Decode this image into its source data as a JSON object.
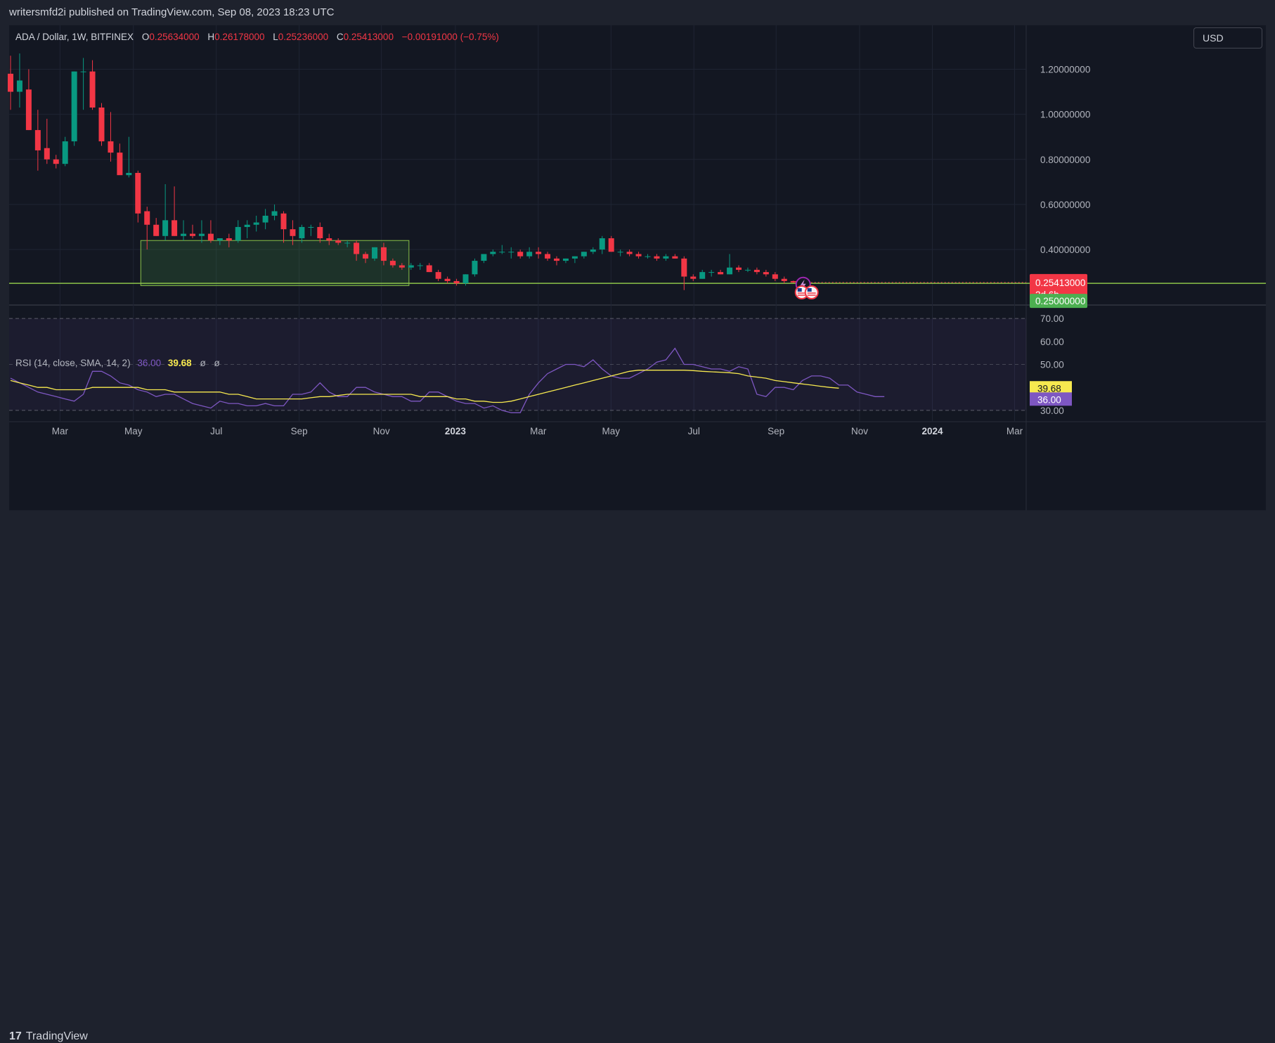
{
  "header": {
    "publisher_line": "writersmfd2i published on TradingView.com, Sep 08, 2023 18:23 UTC"
  },
  "legend": {
    "symbol": "ADA / Dollar, 1W, BITFINEX",
    "o_key": "O",
    "o_val": "0.25634000",
    "h_key": "H",
    "h_val": "0.26178000",
    "l_key": "L",
    "l_val": "0.25236000",
    "c_key": "C",
    "c_val": "0.25413000",
    "change": "−0.00191000 (−0.75%)"
  },
  "currency_button": "USD",
  "rsi_legend": {
    "label": "RSI (14, close, SMA, 14, 2)",
    "rsi_val": "36.00",
    "sma_val": "39.68",
    "phi1": "ø",
    "phi2": "ø"
  },
  "footer": {
    "brand": "TradingView",
    "brand_mark": "17"
  },
  "colors": {
    "up": "#089981",
    "down": "#f23645",
    "background": "#131722",
    "support": "#8bc34a",
    "rsi": "#7e57c2",
    "rsi_sma": "#f7e94f"
  },
  "chart_data": [
    {
      "type": "candlestick",
      "symbol": "ADA / Dollar",
      "interval": "1W",
      "exchange": "BITFINEX",
      "x_tick_labels": [
        "Mar",
        "May",
        "Jul",
        "Sep",
        "Nov",
        "2023",
        "Mar",
        "May",
        "Jul",
        "Sep",
        "Nov",
        "2024",
        "Mar"
      ],
      "y_tick_labels": [
        "1.20000000",
        "1.00000000",
        "0.80000000",
        "0.60000000",
        "0.40000000"
      ],
      "ylim": [
        0.16,
        1.32
      ],
      "price_labels": {
        "last": "0.25413000",
        "countdown": "2d 6h",
        "level": "0.25000000"
      },
      "support_level": 0.25,
      "range_box": {
        "start_index": 14,
        "end_index": 43,
        "top": 0.44,
        "bottom": 0.24
      },
      "candles_ohlc": [
        [
          1.18,
          1.26,
          1.02,
          1.1
        ],
        [
          1.1,
          1.27,
          1.03,
          1.15
        ],
        [
          1.11,
          1.2,
          0.93,
          0.93
        ],
        [
          0.93,
          1.02,
          0.75,
          0.84
        ],
        [
          0.85,
          0.98,
          0.78,
          0.8
        ],
        [
          0.8,
          0.82,
          0.76,
          0.78
        ],
        [
          0.78,
          0.9,
          0.77,
          0.88
        ],
        [
          0.88,
          1.19,
          0.86,
          1.19
        ],
        [
          1.19,
          1.25,
          1.02,
          1.19
        ],
        [
          1.19,
          1.24,
          1.02,
          1.03
        ],
        [
          1.03,
          1.05,
          0.86,
          0.88
        ],
        [
          0.88,
          1.01,
          0.79,
          0.83
        ],
        [
          0.83,
          0.87,
          0.74,
          0.73
        ],
        [
          0.73,
          0.9,
          0.72,
          0.74
        ],
        [
          0.74,
          0.75,
          0.52,
          0.56
        ],
        [
          0.57,
          0.59,
          0.4,
          0.51
        ],
        [
          0.51,
          0.54,
          0.46,
          0.46
        ],
        [
          0.46,
          0.69,
          0.44,
          0.53
        ],
        [
          0.53,
          0.68,
          0.46,
          0.46
        ],
        [
          0.46,
          0.53,
          0.44,
          0.47
        ],
        [
          0.47,
          0.51,
          0.45,
          0.46
        ],
        [
          0.46,
          0.53,
          0.43,
          0.47
        ],
        [
          0.47,
          0.53,
          0.43,
          0.44
        ],
        [
          0.44,
          0.45,
          0.42,
          0.45
        ],
        [
          0.45,
          0.47,
          0.41,
          0.44
        ],
        [
          0.44,
          0.53,
          0.43,
          0.5
        ],
        [
          0.5,
          0.53,
          0.45,
          0.51
        ],
        [
          0.51,
          0.55,
          0.48,
          0.52
        ],
        [
          0.52,
          0.58,
          0.49,
          0.55
        ],
        [
          0.55,
          0.6,
          0.53,
          0.57
        ],
        [
          0.56,
          0.57,
          0.43,
          0.49
        ],
        [
          0.49,
          0.53,
          0.42,
          0.46
        ],
        [
          0.45,
          0.51,
          0.43,
          0.5
        ],
        [
          0.5,
          0.51,
          0.46,
          0.5
        ],
        [
          0.5,
          0.52,
          0.43,
          0.45
        ],
        [
          0.45,
          0.47,
          0.42,
          0.44
        ],
        [
          0.44,
          0.45,
          0.42,
          0.43
        ],
        [
          0.43,
          0.44,
          0.41,
          0.43
        ],
        [
          0.43,
          0.44,
          0.35,
          0.38
        ],
        [
          0.38,
          0.39,
          0.34,
          0.36
        ],
        [
          0.36,
          0.41,
          0.35,
          0.41
        ],
        [
          0.41,
          0.43,
          0.33,
          0.35
        ],
        [
          0.35,
          0.36,
          0.32,
          0.33
        ],
        [
          0.33,
          0.34,
          0.31,
          0.32
        ],
        [
          0.32,
          0.34,
          0.31,
          0.33
        ],
        [
          0.33,
          0.34,
          0.31,
          0.33
        ],
        [
          0.33,
          0.34,
          0.3,
          0.3
        ],
        [
          0.3,
          0.31,
          0.26,
          0.27
        ],
        [
          0.27,
          0.28,
          0.25,
          0.26
        ],
        [
          0.26,
          0.27,
          0.24,
          0.25
        ],
        [
          0.25,
          0.29,
          0.24,
          0.29
        ],
        [
          0.29,
          0.36,
          0.28,
          0.35
        ],
        [
          0.35,
          0.38,
          0.34,
          0.38
        ],
        [
          0.38,
          0.4,
          0.37,
          0.39
        ],
        [
          0.39,
          0.42,
          0.38,
          0.39
        ],
        [
          0.39,
          0.41,
          0.36,
          0.39
        ],
        [
          0.39,
          0.4,
          0.36,
          0.37
        ],
        [
          0.37,
          0.41,
          0.36,
          0.39
        ],
        [
          0.39,
          0.41,
          0.36,
          0.38
        ],
        [
          0.38,
          0.39,
          0.35,
          0.36
        ],
        [
          0.36,
          0.37,
          0.33,
          0.35
        ],
        [
          0.35,
          0.36,
          0.34,
          0.36
        ],
        [
          0.36,
          0.37,
          0.34,
          0.37
        ],
        [
          0.37,
          0.39,
          0.36,
          0.39
        ],
        [
          0.39,
          0.41,
          0.38,
          0.4
        ],
        [
          0.4,
          0.46,
          0.38,
          0.45
        ],
        [
          0.45,
          0.46,
          0.39,
          0.39
        ],
        [
          0.39,
          0.4,
          0.37,
          0.39
        ],
        [
          0.39,
          0.4,
          0.37,
          0.38
        ],
        [
          0.38,
          0.39,
          0.36,
          0.37
        ],
        [
          0.37,
          0.38,
          0.36,
          0.37
        ],
        [
          0.37,
          0.38,
          0.35,
          0.36
        ],
        [
          0.36,
          0.38,
          0.35,
          0.37
        ],
        [
          0.37,
          0.38,
          0.36,
          0.36
        ],
        [
          0.36,
          0.37,
          0.22,
          0.28
        ],
        [
          0.28,
          0.29,
          0.26,
          0.27
        ],
        [
          0.27,
          0.31,
          0.27,
          0.3
        ],
        [
          0.3,
          0.31,
          0.28,
          0.3
        ],
        [
          0.3,
          0.31,
          0.29,
          0.29
        ],
        [
          0.29,
          0.38,
          0.29,
          0.32
        ],
        [
          0.32,
          0.33,
          0.3,
          0.31
        ],
        [
          0.31,
          0.32,
          0.3,
          0.31
        ],
        [
          0.31,
          0.32,
          0.29,
          0.3
        ],
        [
          0.3,
          0.31,
          0.28,
          0.29
        ],
        [
          0.29,
          0.3,
          0.26,
          0.27
        ],
        [
          0.27,
          0.28,
          0.25,
          0.26
        ],
        [
          0.26,
          0.262,
          0.252,
          0.254
        ]
      ]
    },
    {
      "type": "line",
      "title": "RSI (14, close, SMA, 14, 2)",
      "ylim": [
        26,
        74
      ],
      "y_tick_labels": [
        "70.00",
        "60.00",
        "50.00",
        "40.00",
        "30.00"
      ],
      "bands": [
        70,
        50,
        30
      ],
      "series": [
        {
          "name": "RSI",
          "values": [
            44,
            42,
            40,
            38,
            37,
            36,
            35,
            34,
            37,
            47,
            47,
            45,
            42,
            41,
            39,
            38,
            36,
            37,
            37,
            35,
            33,
            32,
            31,
            34,
            33,
            33,
            32,
            32,
            33,
            32,
            32,
            37,
            37,
            38,
            42,
            38,
            36,
            36,
            40,
            40,
            38,
            37,
            36,
            36,
            34,
            34,
            38,
            38,
            36,
            34,
            33,
            33,
            31,
            32,
            30,
            29,
            29,
            37,
            42,
            46,
            48,
            50,
            50,
            49,
            52,
            48,
            45,
            44,
            44,
            46,
            48,
            51,
            52,
            57,
            50,
            50,
            49,
            48,
            48,
            47,
            49,
            48,
            37,
            36,
            40,
            40,
            39,
            43,
            45,
            45,
            44,
            41,
            41,
            38,
            37,
            36,
            36
          ]
        },
        {
          "name": "SMA",
          "values": [
            43,
            42,
            41,
            40,
            40,
            39,
            39,
            39,
            39,
            40,
            40,
            40,
            40,
            40,
            40,
            39,
            39,
            39,
            38,
            38,
            38,
            38,
            38,
            38,
            37,
            37,
            36,
            35,
            35,
            35,
            35,
            35,
            35,
            35.5,
            36,
            36,
            36.5,
            37,
            37,
            37,
            37,
            37,
            37,
            37,
            37,
            36,
            36,
            36,
            36,
            35,
            35,
            34,
            34,
            33.5,
            33.5,
            34,
            35,
            36,
            37,
            38,
            39,
            40,
            41,
            42,
            43,
            44,
            45,
            46,
            47,
            47.5,
            47.5,
            47.5,
            47.5,
            47.5,
            47.5,
            47.3,
            47,
            46.8,
            46.6,
            46.4,
            46,
            45,
            44.5,
            44,
            43,
            42.5,
            42,
            41.5,
            41,
            40.5,
            40,
            39.68
          ]
        }
      ]
    }
  ]
}
